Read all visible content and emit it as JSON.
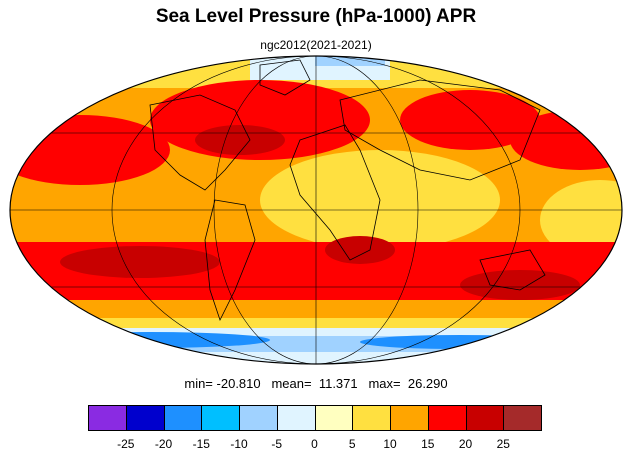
{
  "title": "Sea Level Pressure (hPa-1000) APR",
  "subtitle": "ngc2012(2021-2021)",
  "stats": {
    "min_label": "min=",
    "min": "-20.810",
    "mean_label": "mean=",
    "mean": "11.371",
    "max_label": "max=",
    "max": "26.290"
  },
  "colorbar": {
    "colors": [
      "#8a2be2",
      "#0000cd",
      "#1e90ff",
      "#00bfff",
      "#a0d2ff",
      "#e0f4ff",
      "#ffffc0",
      "#ffe040",
      "#ffa500",
      "#ff0000",
      "#c80000",
      "#a52a2a"
    ],
    "labels": [
      "-25",
      "-20",
      "-15",
      "-10",
      "-5",
      "0",
      "5",
      "10",
      "15",
      "20",
      "25"
    ]
  },
  "map": {
    "projection": "mollweide",
    "graticule": true
  }
}
